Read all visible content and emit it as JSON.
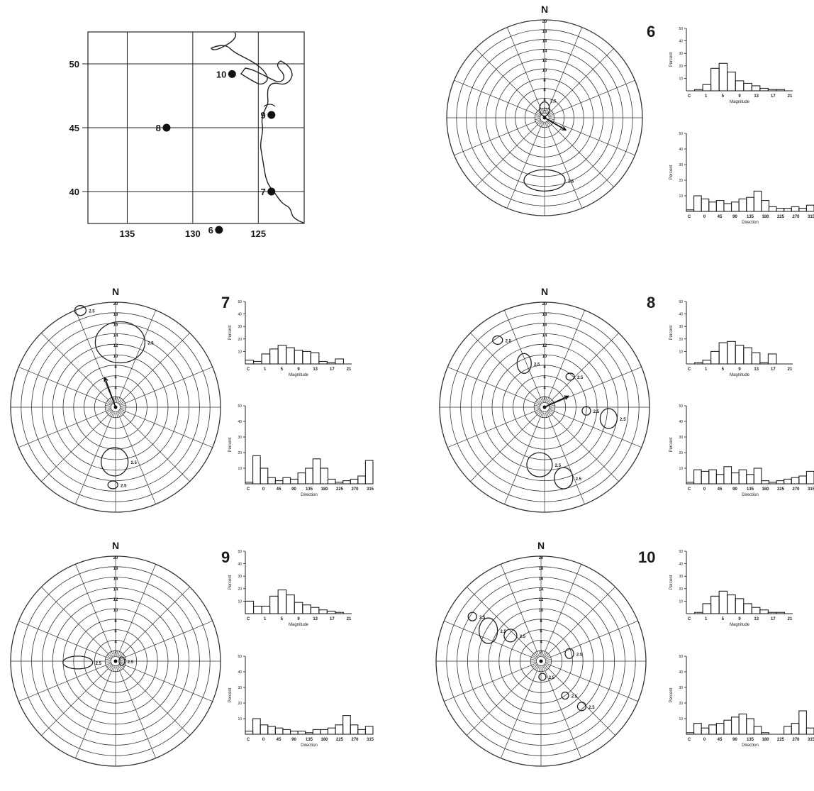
{
  "map": {
    "lat_labels": [
      "50",
      "45",
      "40"
    ],
    "lon_labels": [
      "135",
      "130",
      "125"
    ],
    "stations": [
      {
        "label": "10",
        "lon": 127.0,
        "lat": 49.2
      },
      {
        "label": "9",
        "lon": 124.0,
        "lat": 46.0
      },
      {
        "label": "8",
        "lon": 132.0,
        "lat": 45.0
      },
      {
        "label": "7",
        "lon": 124.0,
        "lat": 40.0
      },
      {
        "label": "6",
        "lon": 128.0,
        "lat": 37.0
      }
    ]
  },
  "compass_label": "N",
  "polar_ring_labels": [
    "2",
    "4",
    "6",
    "8",
    "10",
    "12",
    "14",
    "16",
    "18",
    "20"
  ],
  "contour_label": "2.5",
  "hist_y_label": "Percent",
  "hist_y_ticks": [
    "10",
    "20",
    "30",
    "40",
    "50"
  ],
  "mag_x_label": "Magnitude",
  "mag_ticks": [
    "C",
    "1",
    "5",
    "9",
    "13",
    "17",
    "21"
  ],
  "dir_x_label": "Direction",
  "dir_ticks": [
    "C",
    "0",
    "45",
    "90",
    "135",
    "180",
    "225",
    "270",
    "315"
  ],
  "chart_data": [
    {
      "type": "bar",
      "station": "6",
      "magnitude": {
        "categories": [
          "C",
          "1",
          "3",
          "5",
          "7",
          "9",
          "11",
          "13",
          "15",
          "17",
          "19",
          "21",
          "23"
        ],
        "values": [
          0,
          1,
          5,
          18,
          22,
          15,
          8,
          6,
          4,
          2,
          1,
          1,
          0
        ],
        "ylim": [
          0,
          50
        ]
      },
      "direction": {
        "categories": [
          "C",
          "0",
          "22.5",
          "45",
          "67.5",
          "90",
          "112.5",
          "135",
          "157.5",
          "180",
          "202.5",
          "225",
          "247.5",
          "270",
          "292.5",
          "315",
          "337.5"
        ],
        "values": [
          1,
          10,
          8,
          6,
          7,
          5,
          6,
          8,
          9,
          13,
          7,
          3,
          2,
          2,
          3,
          2,
          4
        ],
        "ylim": [
          0,
          50
        ]
      }
    },
    {
      "type": "bar",
      "station": "7",
      "magnitude": {
        "categories": [
          "C",
          "1",
          "3",
          "5",
          "7",
          "9",
          "11",
          "13",
          "15",
          "17",
          "19",
          "21",
          "23"
        ],
        "values": [
          3,
          2,
          8,
          12,
          15,
          13,
          11,
          10,
          9,
          2,
          1,
          4,
          0
        ],
        "ylim": [
          0,
          50
        ]
      },
      "direction": {
        "categories": [
          "C",
          "0",
          "22.5",
          "45",
          "67.5",
          "90",
          "112.5",
          "135",
          "157.5",
          "180",
          "202.5",
          "225",
          "247.5",
          "270",
          "292.5",
          "315",
          "337.5"
        ],
        "values": [
          1,
          18,
          10,
          4,
          2,
          4,
          3,
          7,
          10,
          16,
          10,
          3,
          1,
          2,
          3,
          5,
          15
        ],
        "ylim": [
          0,
          50
        ]
      }
    },
    {
      "type": "bar",
      "station": "8",
      "magnitude": {
        "categories": [
          "C",
          "1",
          "3",
          "5",
          "7",
          "9",
          "11",
          "13",
          "15",
          "17",
          "19",
          "21",
          "23"
        ],
        "values": [
          0,
          1,
          3,
          10,
          17,
          18,
          15,
          13,
          9,
          1,
          8,
          0,
          0
        ],
        "ylim": [
          0,
          50
        ]
      },
      "direction": {
        "categories": [
          "C",
          "0",
          "22.5",
          "45",
          "67.5",
          "90",
          "112.5",
          "135",
          "157.5",
          "180",
          "202.5",
          "225",
          "247.5",
          "270",
          "292.5",
          "315",
          "337.5"
        ],
        "values": [
          1,
          9,
          8,
          9,
          6,
          11,
          7,
          9,
          6,
          10,
          2,
          1,
          2,
          3,
          4,
          5,
          8
        ],
        "ylim": [
          0,
          50
        ]
      }
    },
    {
      "type": "bar",
      "station": "9",
      "magnitude": {
        "categories": [
          "C",
          "1",
          "3",
          "5",
          "7",
          "9",
          "11",
          "13",
          "15",
          "17",
          "19",
          "21",
          "23"
        ],
        "values": [
          10,
          6,
          6,
          14,
          19,
          15,
          9,
          7,
          5,
          3,
          2,
          1,
          0
        ],
        "ylim": [
          0,
          50
        ]
      },
      "direction": {
        "categories": [
          "C",
          "0",
          "22.5",
          "45",
          "67.5",
          "90",
          "112.5",
          "135",
          "157.5",
          "180",
          "202.5",
          "225",
          "247.5",
          "270",
          "292.5",
          "315",
          "337.5"
        ],
        "values": [
          2,
          10,
          6,
          5,
          4,
          3,
          2,
          2,
          1,
          3,
          3,
          4,
          6,
          12,
          6,
          3,
          5
        ],
        "ylim": [
          0,
          50
        ]
      }
    },
    {
      "type": "bar",
      "station": "10",
      "magnitude": {
        "categories": [
          "C",
          "1",
          "3",
          "5",
          "7",
          "9",
          "11",
          "13",
          "15",
          "17",
          "19",
          "21",
          "23"
        ],
        "values": [
          0,
          1,
          8,
          14,
          18,
          15,
          12,
          8,
          5,
          3,
          1,
          1,
          0
        ],
        "ylim": [
          0,
          50
        ]
      },
      "direction": {
        "categories": [
          "C",
          "0",
          "22.5",
          "45",
          "67.5",
          "90",
          "112.5",
          "135",
          "157.5",
          "180",
          "202.5",
          "225",
          "247.5",
          "270",
          "292.5",
          "315",
          "337.5"
        ],
        "values": [
          1,
          7,
          4,
          6,
          7,
          9,
          11,
          13,
          10,
          5,
          1,
          0,
          0,
          5,
          7,
          15,
          4
        ],
        "ylim": [
          0,
          50
        ]
      }
    }
  ],
  "polar_data": [
    {
      "station": "6",
      "vector": {
        "dir_deg": 120,
        "mag": 5
      },
      "labeled_contours": 2
    },
    {
      "station": "7",
      "vector": {
        "dir_deg": 340,
        "mag": 6
      },
      "labeled_contours": 4
    },
    {
      "station": "8",
      "vector": {
        "dir_deg": 65,
        "mag": 5
      },
      "labeled_contours": 7
    },
    {
      "station": "9",
      "vector": {
        "dir_deg": 0,
        "mag": 0
      },
      "labeled_contours": 2
    },
    {
      "station": "10",
      "vector": {
        "dir_deg": 0,
        "mag": 0
      },
      "labeled_contours": 6
    }
  ]
}
